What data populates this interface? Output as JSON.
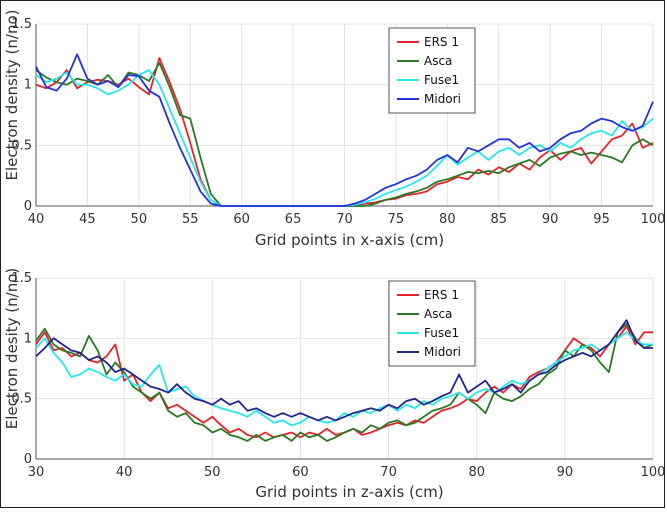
{
  "chart_data": [
    {
      "type": "line",
      "xlabel": "Grid points in x-axis (cm)",
      "ylabel": "Electron density (n/no)",
      "xlim": [
        40,
        100
      ],
      "ylim": [
        0,
        1.5
      ],
      "xticks": [
        40,
        45,
        50,
        55,
        60,
        65,
        70,
        75,
        80,
        85,
        90,
        95,
        100
      ],
      "yticks": [
        0,
        0.5,
        1,
        1.5
      ],
      "ytick_labels": [
        "0",
        "0.5",
        "1",
        "1.5"
      ],
      "grid": true,
      "legend_position": "top-right",
      "series": [
        {
          "name": "ERS 1",
          "color": "#e8222a",
          "x": [
            40,
            41,
            42,
            43,
            44,
            45,
            46,
            47,
            48,
            49,
            50,
            51,
            52,
            53,
            54,
            55,
            56,
            57,
            58,
            59,
            60,
            62,
            64,
            66,
            68,
            70,
            71,
            72,
            73,
            74,
            75,
            76,
            77,
            78,
            79,
            80,
            81,
            82,
            83,
            84,
            85,
            86,
            87,
            88,
            89,
            90,
            91,
            92,
            93,
            94,
            95,
            96,
            97,
            98,
            99,
            100
          ],
          "values": [
            1.0,
            0.97,
            1.02,
            1.12,
            0.97,
            1.02,
            1.04,
            1.03,
            1.0,
            1.05,
            0.98,
            0.92,
            1.22,
            1.02,
            0.8,
            0.52,
            0.22,
            0.05,
            0.0,
            0.0,
            0.0,
            0.0,
            0.0,
            0.0,
            0.0,
            0.0,
            0.0,
            0.02,
            0.03,
            0.05,
            0.06,
            0.09,
            0.1,
            0.12,
            0.18,
            0.2,
            0.24,
            0.22,
            0.3,
            0.26,
            0.32,
            0.28,
            0.35,
            0.3,
            0.4,
            0.46,
            0.38,
            0.45,
            0.48,
            0.35,
            0.45,
            0.55,
            0.58,
            0.68,
            0.48,
            0.52
          ]
        },
        {
          "name": "Asca",
          "color": "#2a7a24",
          "x": [
            40,
            41,
            42,
            43,
            44,
            45,
            46,
            47,
            48,
            49,
            50,
            51,
            52,
            53,
            54,
            55,
            56,
            57,
            58,
            59,
            60,
            62,
            64,
            66,
            68,
            70,
            71,
            72,
            73,
            74,
            75,
            76,
            77,
            78,
            79,
            80,
            81,
            82,
            83,
            84,
            85,
            86,
            87,
            88,
            89,
            90,
            91,
            92,
            93,
            94,
            95,
            96,
            97,
            98,
            99,
            100
          ],
          "values": [
            1.12,
            1.06,
            1.02,
            1.0,
            1.05,
            1.03,
            1.0,
            1.08,
            0.98,
            1.1,
            1.08,
            1.03,
            1.18,
            0.98,
            0.75,
            0.72,
            0.4,
            0.1,
            0.0,
            0.0,
            0.0,
            0.0,
            0.0,
            0.0,
            0.0,
            0.0,
            0.0,
            0.0,
            0.02,
            0.05,
            0.07,
            0.1,
            0.12,
            0.15,
            0.2,
            0.22,
            0.25,
            0.28,
            0.27,
            0.29,
            0.27,
            0.32,
            0.35,
            0.38,
            0.33,
            0.4,
            0.43,
            0.45,
            0.42,
            0.44,
            0.42,
            0.4,
            0.36,
            0.5,
            0.55,
            0.5
          ]
        },
        {
          "name": "Fuse1",
          "color": "#27e6ee",
          "x": [
            40,
            41,
            42,
            43,
            44,
            45,
            46,
            47,
            48,
            49,
            50,
            51,
            52,
            53,
            54,
            55,
            56,
            57,
            58,
            59,
            60,
            62,
            64,
            66,
            68,
            70,
            71,
            72,
            73,
            74,
            75,
            76,
            77,
            78,
            79,
            80,
            81,
            82,
            83,
            84,
            85,
            86,
            87,
            88,
            89,
            90,
            91,
            92,
            93,
            94,
            95,
            96,
            97,
            98,
            99,
            100
          ],
          "values": [
            1.08,
            1.02,
            1.05,
            1.1,
            1.0,
            1.0,
            0.97,
            0.92,
            0.95,
            1.0,
            1.08,
            1.12,
            1.0,
            0.8,
            0.6,
            0.4,
            0.2,
            0.05,
            0.0,
            0.0,
            0.0,
            0.0,
            0.0,
            0.0,
            0.0,
            0.0,
            0.01,
            0.03,
            0.06,
            0.1,
            0.13,
            0.16,
            0.2,
            0.25,
            0.33,
            0.42,
            0.34,
            0.4,
            0.45,
            0.38,
            0.45,
            0.48,
            0.42,
            0.48,
            0.5,
            0.45,
            0.52,
            0.48,
            0.55,
            0.6,
            0.62,
            0.58,
            0.7,
            0.62,
            0.65,
            0.72
          ]
        },
        {
          "name": "Midori",
          "color": "#2432de",
          "x": [
            40,
            41,
            42,
            43,
            44,
            45,
            46,
            47,
            48,
            49,
            50,
            51,
            52,
            53,
            54,
            55,
            56,
            57,
            58,
            59,
            60,
            62,
            64,
            66,
            68,
            70,
            71,
            72,
            73,
            74,
            75,
            76,
            77,
            78,
            79,
            80,
            81,
            82,
            83,
            84,
            85,
            86,
            87,
            88,
            89,
            90,
            91,
            92,
            93,
            94,
            95,
            96,
            97,
            98,
            99,
            100
          ],
          "values": [
            1.15,
            0.98,
            0.95,
            1.05,
            1.25,
            1.05,
            1.0,
            1.03,
            0.98,
            1.08,
            1.07,
            0.95,
            0.9,
            0.68,
            0.48,
            0.3,
            0.12,
            0.02,
            0.0,
            0.0,
            0.0,
            0.0,
            0.0,
            0.0,
            0.0,
            0.0,
            0.02,
            0.05,
            0.1,
            0.15,
            0.18,
            0.22,
            0.25,
            0.3,
            0.38,
            0.42,
            0.36,
            0.48,
            0.45,
            0.5,
            0.55,
            0.55,
            0.48,
            0.52,
            0.45,
            0.48,
            0.55,
            0.6,
            0.62,
            0.68,
            0.72,
            0.7,
            0.65,
            0.62,
            0.66,
            0.86
          ]
        }
      ]
    },
    {
      "type": "line",
      "xlabel": "Grid points in z-axis (cm)",
      "ylabel": "Electron desity (n/no)",
      "xlim": [
        30,
        100
      ],
      "ylim": [
        0,
        1.5
      ],
      "xticks": [
        30,
        40,
        50,
        60,
        70,
        80,
        90,
        100
      ],
      "yticks": [
        0,
        0.5,
        1,
        1.5
      ],
      "ytick_labels": [
        "0",
        "0.5",
        "1",
        "1.5"
      ],
      "grid": true,
      "legend_position": "top-right",
      "series": [
        {
          "name": "ERS 1",
          "color": "#e8222a",
          "x": [
            30,
            31,
            32,
            33,
            34,
            35,
            36,
            37,
            38,
            39,
            40,
            41,
            42,
            43,
            44,
            45,
            46,
            47,
            48,
            49,
            50,
            51,
            52,
            53,
            54,
            55,
            56,
            57,
            58,
            59,
            60,
            61,
            62,
            63,
            64,
            65,
            66,
            67,
            68,
            69,
            70,
            71,
            72,
            73,
            74,
            75,
            76,
            77,
            78,
            79,
            80,
            81,
            82,
            83,
            84,
            85,
            86,
            87,
            88,
            89,
            90,
            91,
            92,
            93,
            94,
            95,
            96,
            97,
            98,
            99,
            100
          ],
          "values": [
            0.95,
            1.05,
            0.9,
            0.92,
            0.85,
            0.88,
            0.82,
            0.8,
            0.85,
            0.95,
            0.65,
            0.7,
            0.55,
            0.48,
            0.55,
            0.42,
            0.45,
            0.4,
            0.35,
            0.3,
            0.35,
            0.28,
            0.22,
            0.25,
            0.2,
            0.18,
            0.22,
            0.18,
            0.2,
            0.22,
            0.18,
            0.22,
            0.2,
            0.25,
            0.2,
            0.22,
            0.25,
            0.2,
            0.22,
            0.25,
            0.28,
            0.3,
            0.28,
            0.32,
            0.3,
            0.35,
            0.4,
            0.42,
            0.45,
            0.5,
            0.48,
            0.55,
            0.6,
            0.55,
            0.62,
            0.58,
            0.68,
            0.72,
            0.75,
            0.8,
            0.9,
            1.0,
            0.95,
            0.92,
            0.85,
            0.95,
            1.0,
            1.1,
            0.95,
            1.05,
            1.05
          ]
        },
        {
          "name": "Asca",
          "color": "#2a7a24",
          "x": [
            30,
            31,
            32,
            33,
            34,
            35,
            36,
            37,
            38,
            39,
            40,
            41,
            42,
            43,
            44,
            45,
            46,
            47,
            48,
            49,
            50,
            51,
            52,
            53,
            54,
            55,
            56,
            57,
            58,
            59,
            60,
            61,
            62,
            63,
            64,
            65,
            66,
            67,
            68,
            69,
            70,
            71,
            72,
            73,
            74,
            75,
            76,
            77,
            78,
            79,
            80,
            81,
            82,
            83,
            84,
            85,
            86,
            87,
            88,
            89,
            90,
            91,
            92,
            93,
            94,
            95,
            96,
            97,
            98,
            99,
            100
          ],
          "values": [
            0.98,
            1.08,
            0.95,
            0.9,
            0.88,
            0.85,
            1.02,
            0.9,
            0.7,
            0.8,
            0.72,
            0.6,
            0.55,
            0.5,
            0.55,
            0.4,
            0.35,
            0.38,
            0.3,
            0.28,
            0.22,
            0.25,
            0.2,
            0.18,
            0.15,
            0.2,
            0.15,
            0.18,
            0.2,
            0.15,
            0.22,
            0.18,
            0.2,
            0.15,
            0.18,
            0.22,
            0.25,
            0.22,
            0.28,
            0.25,
            0.3,
            0.32,
            0.28,
            0.3,
            0.35,
            0.4,
            0.42,
            0.45,
            0.55,
            0.5,
            0.45,
            0.38,
            0.55,
            0.5,
            0.48,
            0.52,
            0.58,
            0.62,
            0.7,
            0.75,
            0.9,
            0.85,
            0.95,
            0.9,
            0.8,
            0.72,
            1.05,
            1.12,
            1.0,
            0.92,
            0.95
          ]
        },
        {
          "name": "Fuse1",
          "color": "#27e6ee",
          "x": [
            30,
            31,
            32,
            33,
            34,
            35,
            36,
            37,
            38,
            39,
            40,
            41,
            42,
            43,
            44,
            45,
            46,
            47,
            48,
            49,
            50,
            51,
            52,
            53,
            54,
            55,
            56,
            57,
            58,
            59,
            60,
            61,
            62,
            63,
            64,
            65,
            66,
            67,
            68,
            69,
            70,
            71,
            72,
            73,
            74,
            75,
            76,
            77,
            78,
            79,
            80,
            81,
            82,
            83,
            84,
            85,
            86,
            87,
            88,
            89,
            90,
            91,
            92,
            93,
            94,
            95,
            96,
            97,
            98,
            99,
            100
          ],
          "values": [
            0.92,
            1.0,
            0.88,
            0.8,
            0.68,
            0.7,
            0.75,
            0.72,
            0.68,
            0.65,
            0.7,
            0.62,
            0.6,
            0.7,
            0.78,
            0.55,
            0.58,
            0.6,
            0.52,
            0.48,
            0.45,
            0.42,
            0.4,
            0.38,
            0.35,
            0.4,
            0.35,
            0.3,
            0.32,
            0.28,
            0.3,
            0.35,
            0.32,
            0.3,
            0.32,
            0.38,
            0.35,
            0.4,
            0.38,
            0.42,
            0.45,
            0.4,
            0.45,
            0.42,
            0.48,
            0.45,
            0.5,
            0.52,
            0.55,
            0.5,
            0.55,
            0.58,
            0.55,
            0.6,
            0.65,
            0.62,
            0.65,
            0.7,
            0.75,
            0.8,
            0.85,
            0.9,
            0.92,
            0.95,
            0.9,
            0.95,
            1.0,
            1.05,
            0.98,
            0.95,
            0.95
          ]
        },
        {
          "name": "Midori",
          "color": "#24248c",
          "x": [
            30,
            31,
            32,
            33,
            34,
            35,
            36,
            37,
            38,
            39,
            40,
            41,
            42,
            43,
            44,
            45,
            46,
            47,
            48,
            49,
            50,
            51,
            52,
            53,
            54,
            55,
            56,
            57,
            58,
            59,
            60,
            61,
            62,
            63,
            64,
            65,
            66,
            67,
            68,
            69,
            70,
            71,
            72,
            73,
            74,
            75,
            76,
            77,
            78,
            79,
            80,
            81,
            82,
            83,
            84,
            85,
            86,
            87,
            88,
            89,
            90,
            91,
            92,
            93,
            94,
            95,
            96,
            97,
            98,
            99,
            100
          ],
          "values": [
            0.85,
            0.92,
            1.0,
            0.95,
            0.9,
            0.88,
            0.82,
            0.85,
            0.8,
            0.72,
            0.75,
            0.7,
            0.65,
            0.6,
            0.58,
            0.55,
            0.62,
            0.55,
            0.5,
            0.48,
            0.45,
            0.5,
            0.45,
            0.48,
            0.4,
            0.42,
            0.38,
            0.35,
            0.38,
            0.35,
            0.38,
            0.35,
            0.32,
            0.35,
            0.32,
            0.35,
            0.38,
            0.4,
            0.42,
            0.4,
            0.45,
            0.42,
            0.48,
            0.5,
            0.45,
            0.48,
            0.52,
            0.55,
            0.7,
            0.55,
            0.6,
            0.65,
            0.55,
            0.58,
            0.62,
            0.55,
            0.65,
            0.7,
            0.72,
            0.78,
            0.82,
            0.85,
            0.88,
            0.85,
            0.9,
            0.95,
            1.05,
            1.15,
            0.98,
            0.92,
            0.92
          ]
        }
      ]
    }
  ]
}
